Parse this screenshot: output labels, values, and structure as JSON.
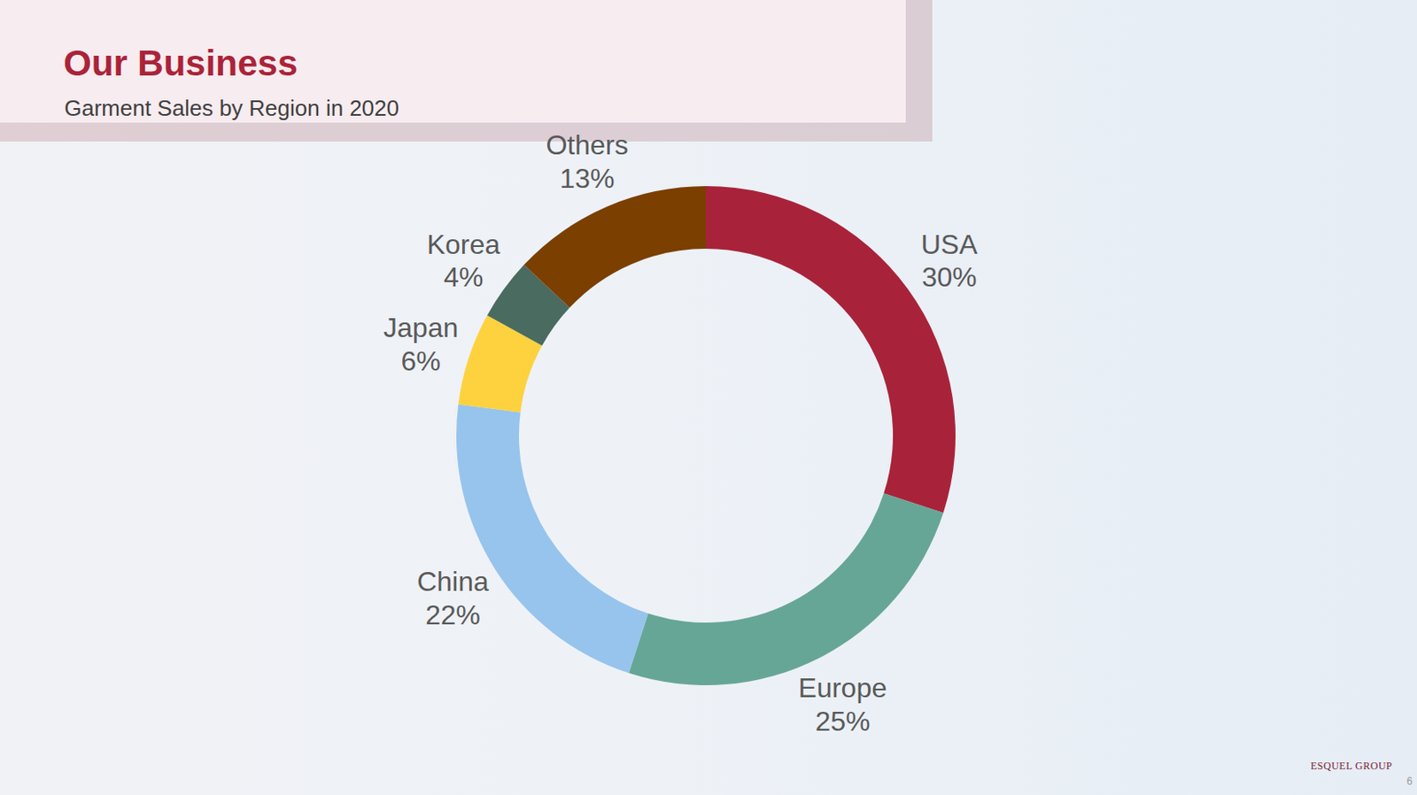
{
  "chart_data": {
    "type": "pie",
    "title": "Our Business",
    "subtitle": "Garment Sales by Region in 2020",
    "categories": [
      "USA",
      "Europe",
      "China",
      "Japan",
      "Korea",
      "Others"
    ],
    "values": [
      30,
      25,
      22,
      6,
      4,
      13
    ],
    "value_labels": [
      "30%",
      "25%",
      "22%",
      "6%",
      "4%",
      "13%"
    ],
    "colors": [
      "#A8233A",
      "#66A696",
      "#97C4EC",
      "#FDD23E",
      "#4A6B60",
      "#7B3F00"
    ],
    "data_labels": true,
    "annotations": [
      "ESQUEL GROUP",
      "6"
    ]
  }
}
